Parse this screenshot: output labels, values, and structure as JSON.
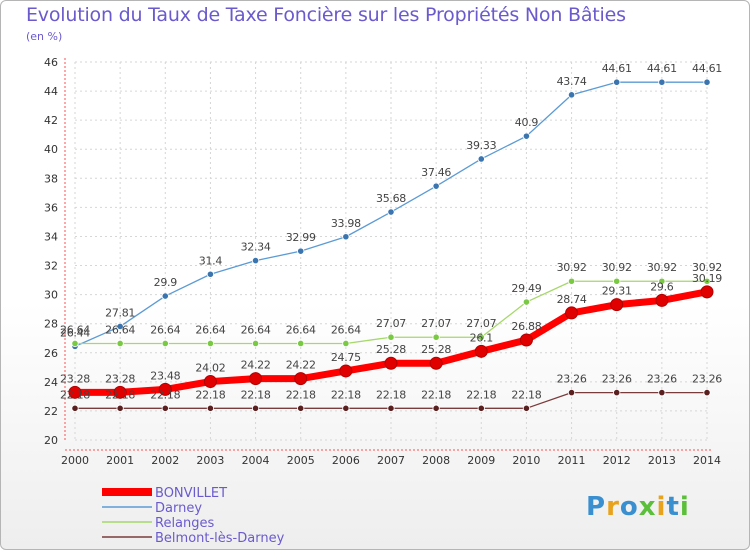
{
  "title": "Evolution du Taux de Taxe Foncière sur les Propriétés Non Bâties",
  "subtitle": "(en %)",
  "logo": {
    "text": "Proxiti",
    "letters": [
      {
        "ch": "P",
        "color": "#3a8fd0"
      },
      {
        "ch": "r",
        "color": "#e8a21b"
      },
      {
        "ch": "o",
        "color": "#3a8fd0"
      },
      {
        "ch": "x",
        "color": "#5bbf3a"
      },
      {
        "ch": "i",
        "color": "#e8a21b"
      },
      {
        "ch": "t",
        "color": "#3a8fd0"
      },
      {
        "ch": "i",
        "color": "#5bbf3a"
      }
    ]
  },
  "chart_data": {
    "type": "line",
    "x": [
      2000,
      2001,
      2002,
      2003,
      2004,
      2005,
      2006,
      2007,
      2008,
      2009,
      2010,
      2011,
      2012,
      2013,
      2014
    ],
    "ylim": [
      20,
      46
    ],
    "yticks": [
      20,
      22,
      24,
      26,
      28,
      30,
      32,
      34,
      36,
      38,
      40,
      42,
      44,
      46
    ],
    "grid": true,
    "legend": "bottom-left",
    "series": [
      {
        "name": "Darney",
        "color": "#5b9bd5",
        "marker": "#3a75b0",
        "values": [
          26.44,
          27.81,
          29.9,
          31.4,
          32.34,
          32.99,
          33.98,
          35.68,
          37.46,
          39.33,
          40.9,
          43.74,
          44.61,
          44.61,
          44.61
        ],
        "labels": [
          "26.44",
          "27.81",
          "29.9",
          "31.4",
          "32.34",
          "32.99",
          "33.98",
          "35.68",
          "37.46",
          "39.33",
          "40.9",
          "43.74",
          "44.61",
          "44.61",
          "44.61"
        ]
      },
      {
        "name": "Relanges",
        "color": "#a6d86a",
        "marker": "#7ac943",
        "values": [
          26.64,
          26.64,
          26.64,
          26.64,
          26.64,
          26.64,
          26.64,
          27.07,
          27.07,
          27.07,
          29.49,
          30.92,
          30.92,
          30.92,
          30.92
        ],
        "labels": [
          "26.64",
          "26.64",
          "26.64",
          "26.64",
          "26.64",
          "26.64",
          "26.64",
          "27.07",
          "27.07",
          "27.07",
          "29.49",
          "30.92",
          "30.92",
          "30.92",
          "30.92"
        ]
      },
      {
        "name": "Belmont-lès-Darney",
        "color": "#7a3b3b",
        "marker": "#5a1f1f",
        "values": [
          22.18,
          22.18,
          22.18,
          22.18,
          22.18,
          22.18,
          22.18,
          22.18,
          22.18,
          22.18,
          22.18,
          23.26,
          23.26,
          23.26,
          23.26
        ],
        "labels": [
          "22.18",
          "22.18",
          "22.18",
          "22.18",
          "22.18",
          "22.18",
          "22.18",
          "22.18",
          "22.18",
          "22.18",
          "22.18",
          "23.26",
          "23.26",
          "23.26",
          "23.26"
        ]
      },
      {
        "name": "BONVILLET",
        "color": "#ff0000",
        "marker": "#e00000",
        "bold": true,
        "values": [
          23.28,
          23.28,
          23.48,
          24.02,
          24.22,
          24.22,
          24.75,
          25.28,
          25.28,
          26.1,
          26.88,
          28.74,
          29.31,
          29.6,
          30.19
        ],
        "labels": [
          "23.28",
          "23.28",
          "23.48",
          "24.02",
          "24.22",
          "24.22",
          "24.75",
          "25.28",
          "25.28",
          "26.1",
          "26.88",
          "28.74",
          "29.31",
          "29.6",
          "30.19"
        ]
      }
    ],
    "legend_order": [
      "BONVILLET",
      "Darney",
      "Relanges",
      "Belmont-lès-Darney"
    ]
  }
}
